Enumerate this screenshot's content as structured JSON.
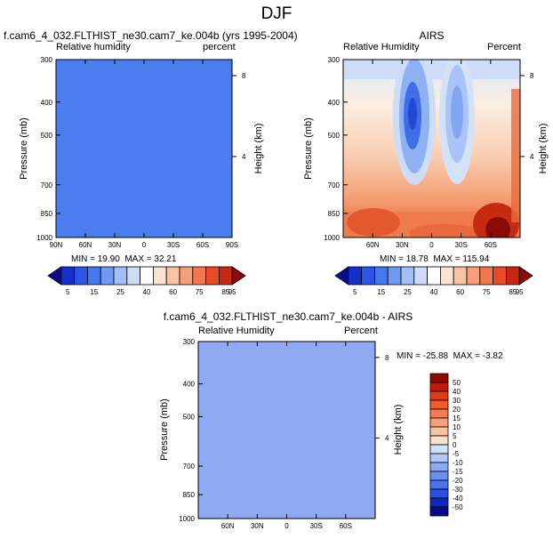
{
  "page_title": "DJF",
  "chart_data": [
    {
      "type": "heatmap",
      "title": "f.cam6_4_032.FLTHIST_ne30.cam7_ke.004b (yrs 1995-2004)",
      "left_label": "Relative humidity",
      "right_label": "percent",
      "ylabel": "Pressure (mb)",
      "y2label": "Height (km)",
      "y_ticks": [
        "300",
        "400",
        "500",
        "700",
        "850",
        "1000"
      ],
      "y2_ticks": [
        "8",
        "4"
      ],
      "x_ticks": [
        "90N",
        "60N",
        "30N",
        "0",
        "30S",
        "60S",
        "90S"
      ],
      "stats": {
        "min_label": "MIN =",
        "min": "19.90",
        "max_label": "MAX =",
        "max": "32.21"
      },
      "fill_color": "#4a7ef0"
    },
    {
      "type": "heatmap",
      "title": "AIRS",
      "left_label": "Relative Humidity",
      "right_label": "Percent",
      "ylabel": "Pressure (mb)",
      "y2label": "Height (km)",
      "y_ticks": [
        "300",
        "400",
        "500",
        "700",
        "850",
        "1000"
      ],
      "y2_ticks": [
        "8",
        "4"
      ],
      "x_ticks": [
        "60N",
        "30N",
        "0",
        "30S",
        "60S"
      ],
      "stats": {
        "min_label": "MIN =",
        "min": "18.78",
        "max_label": "MAX =",
        "max": "115.94"
      },
      "field_description": "RH minima near 30N and 30S in upper levels, maxima near surface and in deep tropics"
    },
    {
      "type": "heatmap",
      "title": "f.cam6_4_032.FLTHIST_ne30.cam7_ke.004b - AIRS",
      "left_label": "Relative Humidity",
      "right_label": "Percent",
      "ylabel": "Pressure (mb)",
      "y2label": "Height (km)",
      "y_ticks": [
        "300",
        "400",
        "500",
        "700",
        "850",
        "1000"
      ],
      "y2_ticks": [
        "8",
        "4"
      ],
      "x_ticks": [
        "60N",
        "30N",
        "0",
        "30S",
        "60S"
      ],
      "stats": {
        "min_label": "MIN =",
        "min": "-25.88",
        "max_label": "MAX =",
        "max": "-3.82"
      },
      "fill_color": "#8eaaf2"
    }
  ],
  "colorbar_abs": {
    "labels": [
      "5",
      "15",
      "25",
      "40",
      "60",
      "75",
      "85",
      "95"
    ],
    "colors": [
      "#0a0a8c",
      "#1530c8",
      "#2a55e8",
      "#4477f0",
      "#6f99f4",
      "#a2bef6",
      "#cfdcf8",
      "#ffffff",
      "#fce2d0",
      "#f8c3a4",
      "#f59e78",
      "#f2774f",
      "#e84a28",
      "#c82812",
      "#8c0a05"
    ]
  },
  "colorbar_diff": {
    "labels": [
      "50",
      "40",
      "30",
      "20",
      "15",
      "10",
      "5",
      "0",
      "-5",
      "-10",
      "-15",
      "-20",
      "-30",
      "-40",
      "-50"
    ],
    "colors": [
      "#8c0a05",
      "#c01b0a",
      "#e03a1a",
      "#f25a30",
      "#f47a50",
      "#f7a078",
      "#f9c3a2",
      "#fbe1cc",
      "#d4e2f8",
      "#b0c8f6",
      "#8cacf2",
      "#6a90f0",
      "#4a72ec",
      "#2a4ee0",
      "#1028b8",
      "#08088a"
    ]
  }
}
